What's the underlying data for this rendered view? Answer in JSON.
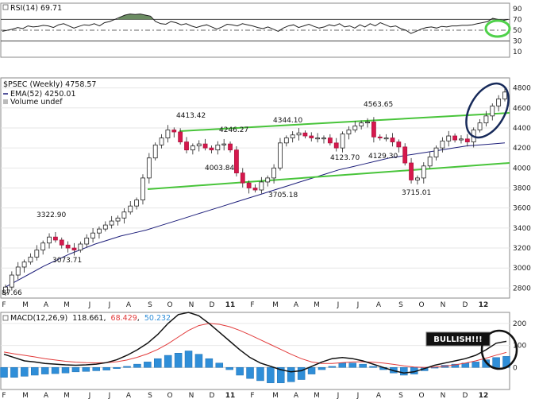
{
  "chart_data": [
    {
      "type": "line",
      "title": "RSI(14) 69.71",
      "ylim": [
        0,
        100
      ],
      "y_ticks": [
        10,
        30,
        50,
        70,
        90
      ],
      "reference_lines": [
        70,
        50,
        30
      ],
      "series": [
        {
          "values": [
            48,
            50,
            52,
            55,
            53,
            58,
            56,
            57,
            59,
            58,
            55,
            60,
            62,
            58,
            54,
            57,
            60,
            59,
            62,
            58,
            64,
            66,
            70,
            74,
            78,
            80,
            79,
            80,
            78,
            76,
            66,
            62,
            61,
            66,
            64,
            60,
            62,
            58,
            55,
            58,
            60,
            56,
            52,
            56,
            61,
            60,
            58,
            62,
            60,
            58,
            55,
            53,
            56,
            52,
            48,
            54,
            58,
            60,
            55,
            58,
            61,
            57,
            54,
            56,
            60,
            58,
            62,
            56,
            58,
            54,
            60,
            56,
            62,
            58,
            64,
            60,
            56,
            58,
            53,
            50,
            44,
            48,
            52,
            55,
            56,
            54,
            57,
            56,
            58,
            58,
            59,
            59,
            60,
            62,
            64,
            66,
            72,
            70,
            68,
            70
          ]
        }
      ],
      "annotation": "green-ellipse"
    },
    {
      "type": "candlestick",
      "title": "$PSEC (Weekly) 4758.57",
      "legend": [
        "EMA(52) 4250.01",
        "Volume undef"
      ],
      "ylim": [
        2700,
        4900
      ],
      "y_ticks": [
        2800,
        3000,
        3200,
        3400,
        3600,
        3800,
        4000,
        4200,
        4400,
        4600,
        4800
      ],
      "x_ticks": [
        "F",
        "M",
        "A",
        "M",
        "J",
        "J",
        "A",
        "S",
        "O",
        "N",
        "D",
        "11",
        "F",
        "M",
        "A",
        "M",
        "J",
        "J",
        "A",
        "S",
        "O",
        "N",
        "D",
        "12"
      ],
      "close": [
        2810,
        2930,
        3010,
        3060,
        3110,
        3180,
        3250,
        3310,
        3280,
        3230,
        3200,
        3180,
        3240,
        3300,
        3350,
        3390,
        3430,
        3470,
        3500,
        3560,
        3620,
        3680,
        3900,
        4100,
        4230,
        4300,
        4380,
        4360,
        4260,
        4180,
        4220,
        4240,
        4200,
        4180,
        4230,
        4240,
        4180,
        3950,
        3850,
        3800,
        3780,
        3860,
        3900,
        4000,
        4250,
        4300,
        4330,
        4350,
        4320,
        4300,
        4300,
        4300,
        4250,
        4200,
        4340,
        4380,
        4420,
        4450,
        4460,
        4310,
        4300,
        4300,
        4260,
        4210,
        4050,
        3880,
        3900,
        4020,
        4110,
        4200,
        4270,
        4320,
        4280,
        4290,
        4260,
        4380,
        4450,
        4520,
        4620,
        4690,
        4758.57
      ],
      "price_labels": [
        "87.66",
        "3322.90",
        "3073.71",
        "4413.42",
        "4003.84",
        "4246.27",
        "3705.18",
        "4344.10",
        "4123.70",
        "4563.65",
        "4129.30",
        "3715.01"
      ],
      "ema": [
        2810,
        2880,
        2950,
        3020,
        3080,
        3140,
        3190,
        3240,
        3280,
        3320,
        3350,
        3380,
        3420,
        3460,
        3500,
        3540,
        3580,
        3620,
        3660,
        3700,
        3740,
        3780,
        3820,
        3860,
        3900,
        3940,
        3980,
        4010,
        4040,
        4070,
        4100,
        4120,
        4140,
        4160,
        4180,
        4200,
        4220,
        4230,
        4240,
        4250
      ],
      "trend_lines": [
        "upper-channel",
        "lower-channel"
      ],
      "annotation": "blue-ellipse"
    },
    {
      "type": "line",
      "title": "MACD(12,26,9)",
      "values_text": [
        "118.661",
        "68.429",
        "50.232"
      ],
      "ylim": [
        -100,
        250
      ],
      "y_ticks": [
        0,
        100,
        200
      ],
      "x_ticks": [
        "F",
        "M",
        "A",
        "M",
        "J",
        "J",
        "A",
        "S",
        "O",
        "N",
        "D",
        "11",
        "F",
        "M",
        "A",
        "M",
        "J",
        "J",
        "A",
        "S",
        "O",
        "N",
        "D",
        "12"
      ],
      "series": [
        {
          "values": [
            60,
            45,
            30,
            25,
            18,
            15,
            12,
            10,
            12,
            15,
            22,
            35,
            55,
            80,
            110,
            150,
            200,
            240,
            250,
            235,
            200,
            160,
            120,
            80,
            45,
            20,
            5,
            -10,
            -20,
            -15,
            5,
            25,
            40,
            45,
            40,
            30,
            15,
            0,
            -15,
            -25,
            -20,
            -5,
            10,
            20,
            30,
            40,
            55,
            80,
            110,
            118.661
          ]
        },
        {
          "values": [
            70,
            62,
            55,
            48,
            40,
            34,
            28,
            24,
            22,
            21,
            22,
            26,
            34,
            46,
            62,
            82,
            108,
            138,
            168,
            190,
            200,
            196,
            185,
            168,
            148,
            126,
            104,
            82,
            60,
            40,
            25,
            18,
            18,
            22,
            25,
            26,
            24,
            20,
            14,
            7,
            2,
            0,
            2,
            6,
            12,
            20,
            30,
            42,
            56,
            68.429
          ]
        },
        {
          "values": [
            -45,
            -45,
            -40,
            -35,
            -30,
            -28,
            -25,
            -20,
            -18,
            -15,
            -12,
            -5,
            5,
            15,
            25,
            40,
            55,
            65,
            75,
            60,
            40,
            20,
            -10,
            -35,
            -50,
            -60,
            -70,
            -70,
            -65,
            -55,
            -30,
            -10,
            5,
            20,
            20,
            15,
            5,
            -10,
            -25,
            -35,
            -30,
            -15,
            0,
            10,
            15,
            20,
            25,
            35,
            45,
            50.232
          ]
        }
      ],
      "annotation_label": "BULLISH!!!"
    }
  ]
}
